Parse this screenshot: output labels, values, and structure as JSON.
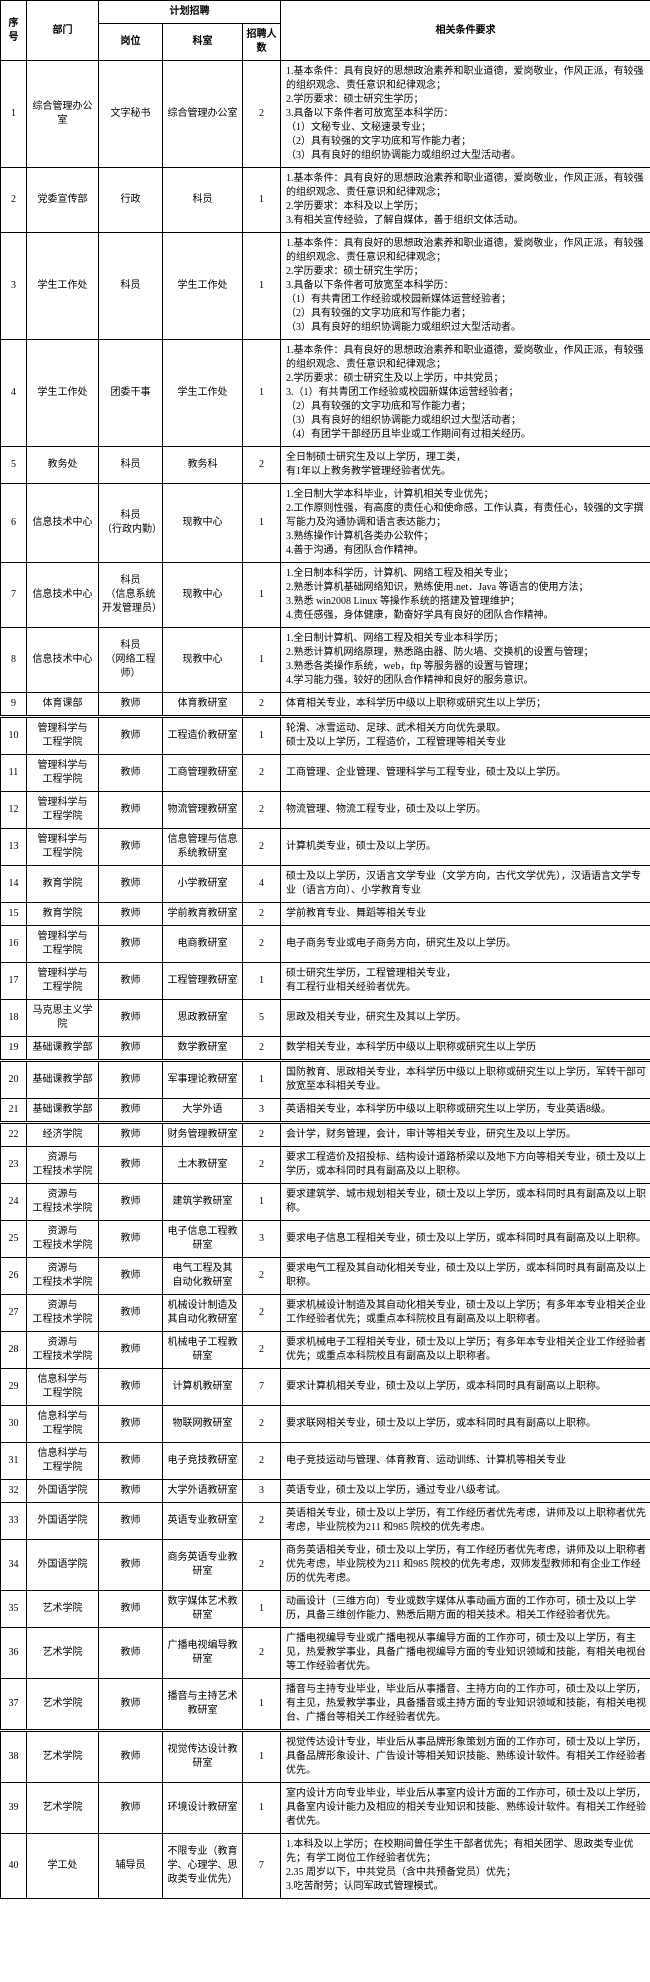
{
  "headers": {
    "seq": "序号",
    "dept": "部门",
    "plan": "计划招聘",
    "pos": "岗位",
    "room": "科室",
    "num": "招聘人数",
    "req": "相关条件要求"
  },
  "rows": [
    {
      "seq": "1",
      "dept": "综合管理办公室",
      "pos": "文字秘书",
      "room": "综合管理办公室",
      "num": "2",
      "req": "1.基本条件：具有良好的思想政治素养和职业道德，爱岗敬业，作风正派，有较强的组织观念、责任意识和纪律观念；\n2.学历要求：硕士研究生学历；\n3.具备以下条件者可放宽至本科学历：\n（1）文秘专业、文秘速录专业；\n（2）具有较强的文字功底和写作能力者；\n（3）具有良好的组织协调能力或组织过大型活动者。"
    },
    {
      "seq": "2",
      "dept": "党委宣传部",
      "pos": "行政",
      "room": "科员",
      "num": "1",
      "req": "1.基本条件：具有良好的思想政治素养和职业道德，爱岗敬业，作风正派，有较强的组织观念、责任意识和纪律观念；\n2.学历要求：本科及以上学历；\n3.有相关宣传经验，了解自媒体，善于组织文体活动。"
    },
    {
      "seq": "3",
      "dept": "学生工作处",
      "pos": "科员",
      "room": "学生工作处",
      "num": "1",
      "req": "1.基本条件：具有良好的思想政治素养和职业道德，爱岗敬业，作风正派，有较强的组织观念、责任意识和纪律观念；\n2.学历要求：硕士研究生学历；\n3.具备以下条件者可放宽至本科学历：\n（1）有共青团工作经验或校园新媒体运营经验者；\n（2）具有较强的文字功底和写作能力者；\n（3）具有良好的组织协调能力或组织过大型活动者。"
    },
    {
      "seq": "4",
      "dept": "学生工作处",
      "pos": "团委干事",
      "room": "学生工作处",
      "num": "1",
      "req": "1.基本条件：具有良好的思想政治素养和职业道德，爱岗敬业，作风正派，有较强的组织观念、责任意识和纪律观念；\n2.学历要求：硕士研究生及以上学历，中共党员；\n3.（1）有共青团工作经验或校园新媒体运营经验者；\n（2）具有较强的文字功底和写作能力者；\n（3）具有良好的组织协调能力或组织过大型活动者；\n（4）有团学干部经历且毕业或工作期间有过相关经历。"
    },
    {
      "seq": "5",
      "dept": "教务处",
      "pos": "科员",
      "room": "教务科",
      "num": "2",
      "req": "全日制硕士研究生及以上学历，理工类，\n有1年以上教务教学管理经验者优先。"
    },
    {
      "seq": "6",
      "dept": "信息技术中心",
      "pos": "科员\n（行政内勤）",
      "room": "现教中心",
      "num": "1",
      "req": "1.全日制大学本科毕业，计算机相关专业优先；\n2.工作原则性强，有高度的责任心和使命感，工作认真，有责任心，较强的文字撰写能力及沟通协调和语言表达能力；\n3.熟练操作计算机各类办公软件；\n4.善于沟通，有团队合作精神。"
    },
    {
      "seq": "7",
      "dept": "信息技术中心",
      "pos": "科员\n（信息系统开发管理员）",
      "room": "现教中心",
      "num": "1",
      "req": "1.全日制本科学历，计算机、网络工程及相关专业；\n2.熟悉计算机基础网络知识，熟练使用.net．Java 等语言的使用方法；\n3.熟悉 win2008 Linux 等操作系统的搭建及管理维护；\n4.责任感强，身体健康，勤奋好学具有良好的团队合作精神。"
    },
    {
      "seq": "8",
      "dept": "信息技术中心",
      "pos": "科员\n（网络工程师）",
      "room": "现教中心",
      "num": "1",
      "req": "1.全日制计算机、网络工程及相关专业本科学历；\n2.熟悉计算机网络原理，熟悉路由器、防火墙、交换机的设置与管理；\n3.熟悉各类操作系统，web，ftp 等服务器的设置与管理；\n4.学习能力强，较好的团队合作精神和良好的服务意识。"
    },
    {
      "seq": "9",
      "dept": "体育课部",
      "pos": "教师",
      "room": "体育教研室",
      "num": "2",
      "req": "体育相关专业，本科学历中级以上职称或研究生以上学历；"
    },
    {
      "seq": "10",
      "dept": "管理科学与\n工程学院",
      "pos": "教师",
      "room": "工程造价教研室",
      "num": "1",
      "req": "轮滑、冰雪运动、足球、武术相关方向优先录取。\n硕士及以上学历，工程造价，工程管理等相关专业"
    },
    {
      "seq": "11",
      "dept": "管理科学与\n工程学院",
      "pos": "教师",
      "room": "工商管理教研室",
      "num": "2",
      "req": "工商管理、企业管理、管理科学与工程专业，硕士及以上学历。"
    },
    {
      "seq": "12",
      "dept": "管理科学与\n工程学院",
      "pos": "教师",
      "room": "物流管理教研室",
      "num": "2",
      "req": "物流管理、物流工程专业，硕士及以上学历。"
    },
    {
      "seq": "13",
      "dept": "管理科学与\n工程学院",
      "pos": "教师",
      "room": "信息管理与信息\n系统教研室",
      "num": "2",
      "req": "计算机类专业，硕士及以上学历。"
    },
    {
      "seq": "14",
      "dept": "教育学院",
      "pos": "教师",
      "room": "小学教研室",
      "num": "4",
      "req": "硕士及以上学历，汉语言文学专业（文学方向，古代文学优先），汉语语言文学专业（语言方向）、小学教育专业"
    },
    {
      "seq": "15",
      "dept": "教育学院",
      "pos": "教师",
      "room": "学前教育教研室",
      "num": "2",
      "req": "学前教育专业、舞蹈等相关专业"
    },
    {
      "seq": "16",
      "dept": "管理科学与\n工程学院",
      "pos": "教师",
      "room": "电商教研室",
      "num": "2",
      "req": "电子商务专业或电子商务方向，研究生及以上学历。"
    },
    {
      "seq": "17",
      "dept": "管理科学与\n工程学院",
      "pos": "教师",
      "room": "工程管理教研室",
      "num": "1",
      "req": "硕士研究生学历，工程管理相关专业，\n有工程行业相关经验者优先。"
    },
    {
      "seq": "18",
      "dept": "马克思主义学院",
      "pos": "教师",
      "room": "思政教研室",
      "num": "5",
      "req": "思政及相关专业，研究生及其以上学历。"
    },
    {
      "seq": "19",
      "dept": "基础课教学部",
      "pos": "教师",
      "room": "数学教研室",
      "num": "2",
      "req": "数学相关专业，本科学历中级以上职称或研究生以上学历"
    },
    {
      "seq": "20",
      "dept": "基础课教学部",
      "pos": "教师",
      "room": "军事理论教研室",
      "num": "1",
      "req": "国防教育、思政相关专业，本科学历中级以上职称或研究生以上学历，军转干部可放宽至本科相关专业。"
    },
    {
      "seq": "21",
      "dept": "基础课教学部",
      "pos": "教师",
      "room": "大学外语",
      "num": "3",
      "req": "英语相关专业，本科学历中级以上职称或研究生以上学历，专业英语8级。"
    },
    {
      "seq": "22",
      "dept": "经济学院",
      "pos": "教师",
      "room": "财务管理教研室",
      "num": "2",
      "req": "会计学，财务管理，会计，审计等相关专业，研究生及以上学历。"
    },
    {
      "seq": "23",
      "dept": "资源与\n工程技术学院",
      "pos": "教师",
      "room": "土木教研室",
      "num": "2",
      "req": "要求工程造价及招投标、结构设计道路桥梁以及地下方向等相关专业，硕士及以上学历，或本科同时具有副高及以上职称。"
    },
    {
      "seq": "24",
      "dept": "资源与\n工程技术学院",
      "pos": "教师",
      "room": "建筑学教研室",
      "num": "1",
      "req": "要求建筑学、城市规划相关专业，硕士及以上学历，或本科同时具有副高及以上职称。"
    },
    {
      "seq": "25",
      "dept": "资源与\n工程技术学院",
      "pos": "教师",
      "room": "电子信息工程教研室",
      "num": "3",
      "req": "要求电子信息工程相关专业，硕士及以上学历，或本科同时具有副高及以上职称。"
    },
    {
      "seq": "26",
      "dept": "资源与\n工程技术学院",
      "pos": "教师",
      "room": "电气工程及其\n自动化教研室",
      "num": "2",
      "req": "要求电气工程及其自动化相关专业，硕士及以上学历，或本科同时具有副高及以上职称。"
    },
    {
      "seq": "27",
      "dept": "资源与\n工程技术学院",
      "pos": "教师",
      "room": "机械设计制造及\n其自动化教研室",
      "num": "2",
      "req": "要求机械设计制造及其自动化相关专业，硕士及以上学历；有多年本专业相关企业工作经验者优先；或重点本科院校且有副高及以上职称者。"
    },
    {
      "seq": "28",
      "dept": "资源与\n工程技术学院",
      "pos": "教师",
      "room": "机械电子工程教研室",
      "num": "2",
      "req": "要求机械电子工程相关专业，硕士及以上学历；有多年本专业相关企业工作经验者优先；或重点本科院校且有副高及以上职称者。"
    },
    {
      "seq": "29",
      "dept": "信息科学与\n工程学院",
      "pos": "教师",
      "room": "计算机教研室",
      "num": "7",
      "req": "要求计算机相关专业，硕士及以上学历，或本科同时具有副高以上职称。"
    },
    {
      "seq": "30",
      "dept": "信息科学与\n工程学院",
      "pos": "教师",
      "room": "物联网教研室",
      "num": "2",
      "req": "要求联网相关专业，硕士及以上学历，或本科同时具有副高以上职称。"
    },
    {
      "seq": "31",
      "dept": "信息科学与\n工程学院",
      "pos": "教师",
      "room": "电子竞技教研室",
      "num": "2",
      "req": "电子竞技运动与管理、体育教育、运动训练、计算机等相关专业"
    },
    {
      "seq": "32",
      "dept": "外国语学院",
      "pos": "教师",
      "room": "大学外语教研室",
      "num": "3",
      "req": "英语专业，硕士及以上学历，通过专业八级考试。"
    },
    {
      "seq": "33",
      "dept": "外国语学院",
      "pos": "教师",
      "room": "英语专业教研室",
      "num": "2",
      "req": "英语相关专业，硕士及以上学历，有工作经历者优先考虑，讲师及以上职称者优先考虑，毕业院校为211 和985 院校的优先考虑。"
    },
    {
      "seq": "34",
      "dept": "外国语学院",
      "pos": "教师",
      "room": "商务英语专业教研室",
      "num": "2",
      "req": "商务英语相关专业，硕士及以上学历，有工作经历者优先考虑，讲师及以上职称者优先考虑，毕业院校为211 和985 院校的优先考虑，双师发型教师和有企业工作经历的优先考虑。"
    },
    {
      "seq": "35",
      "dept": "艺术学院",
      "pos": "教师",
      "room": "数字媒体艺术教研室",
      "num": "1",
      "req": "动画设计（三维方向）专业或数字媒体从事动画方面的工作亦可，硕士及以上学历，具备三维创作能力、熟悉后期方面的相关技术。相关工作经验者优先。"
    },
    {
      "seq": "36",
      "dept": "艺术学院",
      "pos": "教师",
      "room": "广播电视编导教研室",
      "num": "2",
      "req": "广播电视编导专业或广播电视从事编导方面的工作亦可，硕士及以上学历，有主见，热爱教学事业，具备广播电视编导方面的专业知识领域和技能，有相关电视台等工作经验者优先。"
    },
    {
      "seq": "37",
      "dept": "艺术学院",
      "pos": "教师",
      "room": "播音与主持艺术教研室",
      "num": "1",
      "req": "播音与主持专业毕业，毕业后从事播音、主持方向的工作亦可，硕士及以上学历，有主见，热爱教学事业，具备播音或主持方面的专业知识领域和技能，有相关电视台、广播台等相关工作经验者优先。"
    },
    {
      "seq": "38",
      "dept": "艺术学院",
      "pos": "教师",
      "room": "视觉传达设计教研室",
      "num": "1",
      "req": "视觉传达设计专业，毕业后从事品牌形象策划方面的工作亦可，硕士及以上学历，具备品牌形象设计、广告设计等相关知识技能、熟练设计软件。有相关工作经验者优先。"
    },
    {
      "seq": "39",
      "dept": "艺术学院",
      "pos": "教师",
      "room": "环境设计教研室",
      "num": "1",
      "req": "室内设计方向专业毕业，毕业后从事室内设计方面的工作亦可，硕士及以上学历，具备室内设计能力及相应的相关专业知识和技能、熟练设计软件。有相关工作经验者优先。"
    },
    {
      "seq": "40",
      "dept": "学工处",
      "pos": "辅导员",
      "room": "不限专业（教育学、心理学、思政类专业优先）",
      "num": "7",
      "req": "1.本科及以上学历；在校期间曾任学生干部者优先；有相关团学、思政类专业优先；有学工岗位工作经验者优先；\n2.35 周岁以下，中共党员（含中共预备党员）优先；\n3.吃苦耐劳；认同军政式管理模式。"
    }
  ]
}
